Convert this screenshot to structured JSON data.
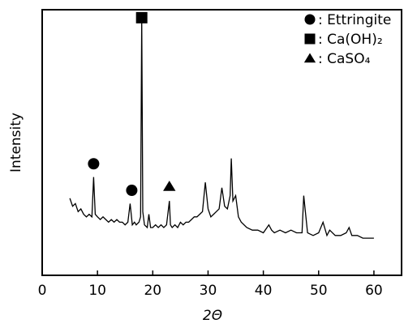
{
  "chart_data": {
    "type": "line",
    "xlabel": "2Θ",
    "ylabel": "Intensity",
    "x": [
      5,
      5.5,
      6,
      6.5,
      7,
      7.5,
      8,
      8.5,
      9,
      9.3,
      9.6,
      10,
      10.5,
      11,
      11.5,
      12,
      12.5,
      13,
      13.5,
      14,
      14.5,
      15,
      15.5,
      15.9,
      16.3,
      16.7,
      17,
      17.5,
      17.8,
      18,
      18.2,
      18.5,
      19,
      19.3,
      19.6,
      20,
      20.5,
      21,
      21.5,
      22,
      22.5,
      23,
      23.2,
      23.5,
      24,
      24.5,
      25,
      25.5,
      26,
      26.5,
      27,
      27.5,
      28,
      28.5,
      29,
      29.5,
      30,
      30.5,
      31,
      31.5,
      32,
      32.5,
      33,
      33.5,
      34,
      34.2,
      34.5,
      35,
      35.5,
      36,
      37,
      38,
      39,
      40,
      41,
      41.5,
      42,
      43,
      44,
      45,
      46,
      47,
      47.3,
      48,
      49,
      50,
      50.8,
      51.5,
      52,
      53,
      54,
      55,
      55.5,
      56,
      57,
      58,
      59,
      60
    ],
    "values": [
      29,
      26,
      27,
      24,
      25,
      23,
      22,
      23,
      22,
      37,
      23,
      22,
      21,
      22,
      21,
      20,
      21,
      20,
      21,
      20,
      20,
      19,
      20,
      27,
      19,
      20,
      19,
      20,
      22,
      97,
      24,
      19,
      18,
      23,
      18,
      18,
      19,
      18,
      19,
      18,
      19,
      28,
      19,
      18,
      19,
      18,
      20,
      19,
      20,
      20,
      21,
      22,
      22,
      23,
      24,
      35,
      25,
      22,
      23,
      24,
      25,
      33,
      26,
      25,
      30,
      44,
      28,
      30,
      22,
      20,
      18,
      17,
      17,
      16,
      19,
      17,
      16,
      17,
      16,
      17,
      16,
      16,
      30,
      16,
      15,
      16,
      20,
      15,
      17,
      15,
      15,
      16,
      18,
      15,
      15,
      14,
      14,
      14
    ],
    "color": "#000000",
    "xlim": [
      0,
      65
    ],
    "xticks": [
      0,
      10,
      20,
      30,
      40,
      50,
      60
    ],
    "ylim": [
      0,
      100
    ],
    "markers": [
      {
        "x": 9.3,
        "y": 42,
        "shape": "circle"
      },
      {
        "x": 16.2,
        "y": 32,
        "shape": "circle"
      },
      {
        "x": 18,
        "y": 97,
        "shape": "square"
      },
      {
        "x": 23,
        "y": 33.5,
        "shape": "triangle"
      }
    ],
    "legend": [
      {
        "shape": "circle",
        "label": ": Ettringite"
      },
      {
        "shape": "square",
        "label": ": Ca(OH)₂"
      },
      {
        "shape": "triangle",
        "label": ": CaSO₄"
      }
    ]
  }
}
